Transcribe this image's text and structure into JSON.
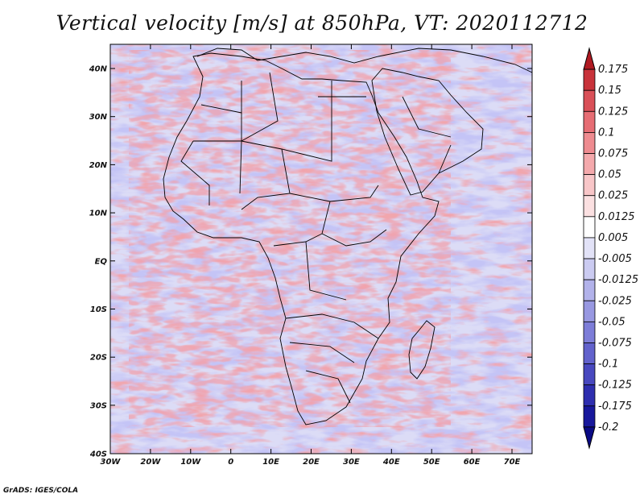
{
  "title": "Vertical velocity [m/s] at 850hPa, VT: 2020112712",
  "credit": "GrADS: IGES/COLA",
  "lat_ticks": [
    "40N",
    "30N",
    "20N",
    "10N",
    "EQ",
    "10S",
    "20S",
    "30S",
    "40S"
  ],
  "lon_ticks": [
    "30W",
    "20W",
    "10W",
    "0",
    "10E",
    "20E",
    "30E",
    "40E",
    "50E",
    "60E",
    "70E"
  ],
  "colorbar": {
    "labels": [
      "0.175",
      "0.15",
      "0.125",
      "0.1",
      "0.075",
      "0.05",
      "0.025",
      "0.0125",
      "0.005",
      "-0.005",
      "-0.0125",
      "-0.025",
      "-0.05",
      "-0.075",
      "-0.1",
      "-0.125",
      "-0.175",
      "-0.2"
    ],
    "colors": [
      "#b01a22",
      "#c8333b",
      "#d95058",
      "#e66d74",
      "#ee8b90",
      "#f4a9ac",
      "#f8c6c8",
      "#fbe0e1",
      "#ffffff",
      "#e2e2f7",
      "#cbcbf1",
      "#b2b2ea",
      "#9898e1",
      "#7d7dd8",
      "#6262cc",
      "#4848bf",
      "#2e2eaf",
      "#18189c",
      "#0a0a85"
    ]
  },
  "colors": {
    "negative": "#8a8ae6",
    "positive": "#e0646c",
    "border": "#000000"
  }
}
